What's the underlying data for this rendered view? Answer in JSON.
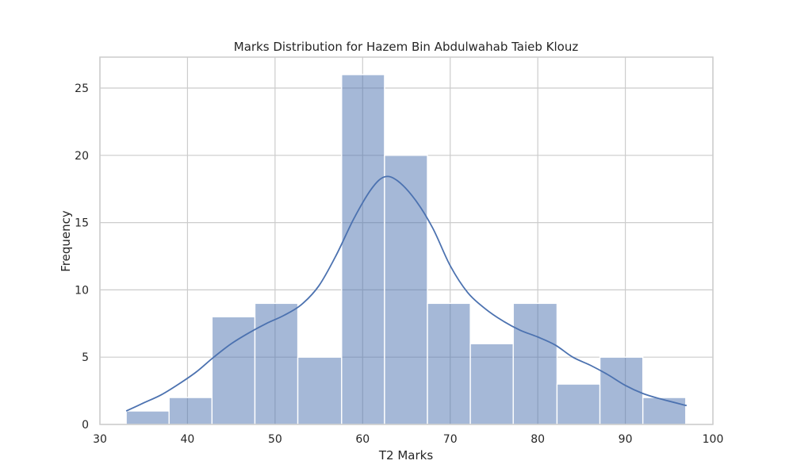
{
  "chart_data": {
    "type": "bar",
    "subtype": "histogram-with-kde",
    "title": "Marks Distribution for Hazem Bin Abdulwahab Taieb Klouz",
    "xlabel": "T2 Marks",
    "ylabel": "Frequency",
    "xlim": [
      30,
      100
    ],
    "ylim": [
      0,
      27.3
    ],
    "xticks": [
      30,
      40,
      50,
      60,
      70,
      80,
      90,
      100
    ],
    "yticks": [
      0,
      5,
      10,
      15,
      20,
      25
    ],
    "grid": true,
    "bar_color": "#4c72b0",
    "bar_opacity": 0.5,
    "line_color": "#4c72b0",
    "bins": [
      {
        "start": 33.0,
        "end": 37.9,
        "count": 1
      },
      {
        "start": 37.9,
        "end": 42.8,
        "count": 2
      },
      {
        "start": 42.8,
        "end": 47.7,
        "count": 8
      },
      {
        "start": 47.7,
        "end": 52.6,
        "count": 9
      },
      {
        "start": 52.6,
        "end": 57.6,
        "count": 5
      },
      {
        "start": 57.6,
        "end": 62.5,
        "count": 26
      },
      {
        "start": 62.5,
        "end": 67.4,
        "count": 20
      },
      {
        "start": 67.4,
        "end": 72.3,
        "count": 9
      },
      {
        "start": 72.3,
        "end": 77.2,
        "count": 6
      },
      {
        "start": 77.2,
        "end": 82.2,
        "count": 9
      },
      {
        "start": 82.2,
        "end": 87.1,
        "count": 3
      },
      {
        "start": 87.1,
        "end": 92.0,
        "count": 5
      },
      {
        "start": 92.0,
        "end": 96.9,
        "count": 2
      }
    ],
    "kde": {
      "x": [
        33,
        35,
        37,
        39,
        41,
        43,
        45,
        47,
        49,
        51,
        53,
        55,
        57,
        59,
        61,
        62.5,
        64,
        66,
        68,
        70,
        72,
        74,
        76,
        78,
        80,
        82,
        84,
        86,
        88,
        90,
        92,
        94,
        97
      ],
      "y": [
        1.0,
        1.6,
        2.2,
        3.0,
        3.9,
        5.0,
        6.0,
        6.8,
        7.5,
        8.1,
        8.9,
        10.3,
        12.6,
        15.3,
        17.5,
        18.4,
        18.1,
        16.7,
        14.6,
        11.8,
        9.8,
        8.6,
        7.7,
        7.0,
        6.5,
        5.9,
        5.0,
        4.4,
        3.7,
        2.9,
        2.3,
        1.9,
        1.4
      ]
    }
  }
}
